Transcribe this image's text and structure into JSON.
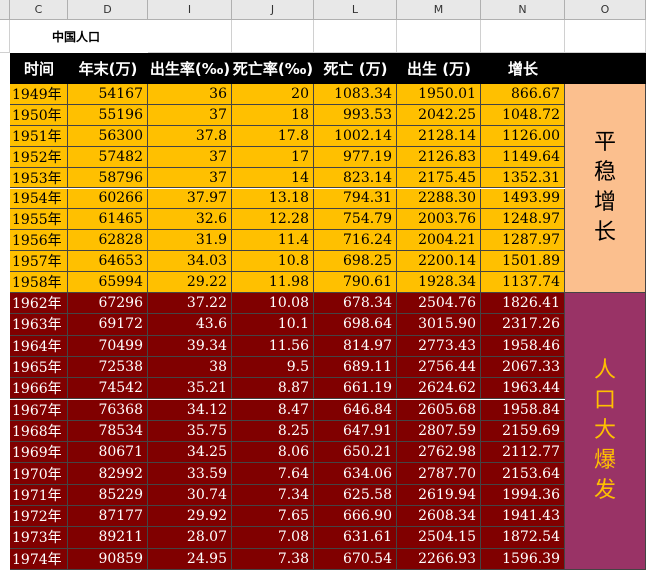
{
  "columns": [
    "C",
    "D",
    "I",
    "J",
    "L",
    "M",
    "N",
    "O"
  ],
  "title": "中国人口",
  "headers": [
    "时间",
    "年末(万)",
    "出生率(‰)",
    "死亡率(‰)",
    "死亡 (万)",
    "出生 (万)",
    "增长"
  ],
  "phase1_label": [
    "平",
    "稳",
    "增",
    "长"
  ],
  "phase2_label": [
    "人",
    "口",
    "大",
    "爆",
    "发"
  ],
  "colors": {
    "stable": "#ffc000",
    "boom": "#800000",
    "stable_label_bg": "#fbbf8e",
    "boom_label_bg": "#993366",
    "header": "#000000"
  },
  "rows_stable": [
    [
      "1949年",
      "54167",
      "36",
      "20",
      "1083.34",
      "1950.01",
      "866.67"
    ],
    [
      "1950年",
      "55196",
      "37",
      "18",
      "993.53",
      "2042.25",
      "1048.72"
    ],
    [
      "1951年",
      "56300",
      "37.8",
      "17.8",
      "1002.14",
      "2128.14",
      "1126.00"
    ],
    [
      "1952年",
      "57482",
      "37",
      "17",
      "977.19",
      "2126.83",
      "1149.64"
    ],
    [
      "1953年",
      "58796",
      "37",
      "14",
      "823.14",
      "2175.45",
      "1352.31"
    ],
    [
      "1954年",
      "60266",
      "37.97",
      "13.18",
      "794.31",
      "2288.30",
      "1493.99"
    ],
    [
      "1955年",
      "61465",
      "32.6",
      "12.28",
      "754.79",
      "2003.76",
      "1248.97"
    ],
    [
      "1956年",
      "62828",
      "31.9",
      "11.4",
      "716.24",
      "2004.21",
      "1287.97"
    ],
    [
      "1957年",
      "64653",
      "34.03",
      "10.8",
      "698.25",
      "2200.14",
      "1501.89"
    ],
    [
      "1958年",
      "65994",
      "29.22",
      "11.98",
      "790.61",
      "1928.34",
      "1137.74"
    ]
  ],
  "rows_boom": [
    [
      "1962年",
      "67296",
      "37.22",
      "10.08",
      "678.34",
      "2504.76",
      "1826.41"
    ],
    [
      "1963年",
      "69172",
      "43.6",
      "10.1",
      "698.64",
      "3015.90",
      "2317.26"
    ],
    [
      "1964年",
      "70499",
      "39.34",
      "11.56",
      "814.97",
      "2773.43",
      "1958.46"
    ],
    [
      "1965年",
      "72538",
      "38",
      "9.5",
      "689.11",
      "2756.44",
      "2067.33"
    ],
    [
      "1966年",
      "74542",
      "35.21",
      "8.87",
      "661.19",
      "2624.62",
      "1963.44"
    ],
    [
      "1967年",
      "76368",
      "34.12",
      "8.47",
      "646.84",
      "2605.68",
      "1958.84"
    ],
    [
      "1968年",
      "78534",
      "35.75",
      "8.25",
      "647.91",
      "2807.59",
      "2159.69"
    ],
    [
      "1969年",
      "80671",
      "34.25",
      "8.06",
      "650.21",
      "2762.98",
      "2112.77"
    ],
    [
      "1970年",
      "82992",
      "33.59",
      "7.64",
      "634.06",
      "2787.70",
      "2153.64"
    ],
    [
      "1971年",
      "85229",
      "30.74",
      "7.34",
      "625.58",
      "2619.94",
      "1994.36"
    ],
    [
      "1972年",
      "87177",
      "29.92",
      "7.65",
      "666.90",
      "2608.34",
      "1941.43"
    ],
    [
      "1973年",
      "89211",
      "28.07",
      "7.08",
      "631.61",
      "2504.15",
      "1872.54"
    ],
    [
      "1974年",
      "90859",
      "24.95",
      "7.38",
      "670.54",
      "2266.93",
      "1596.39"
    ]
  ]
}
